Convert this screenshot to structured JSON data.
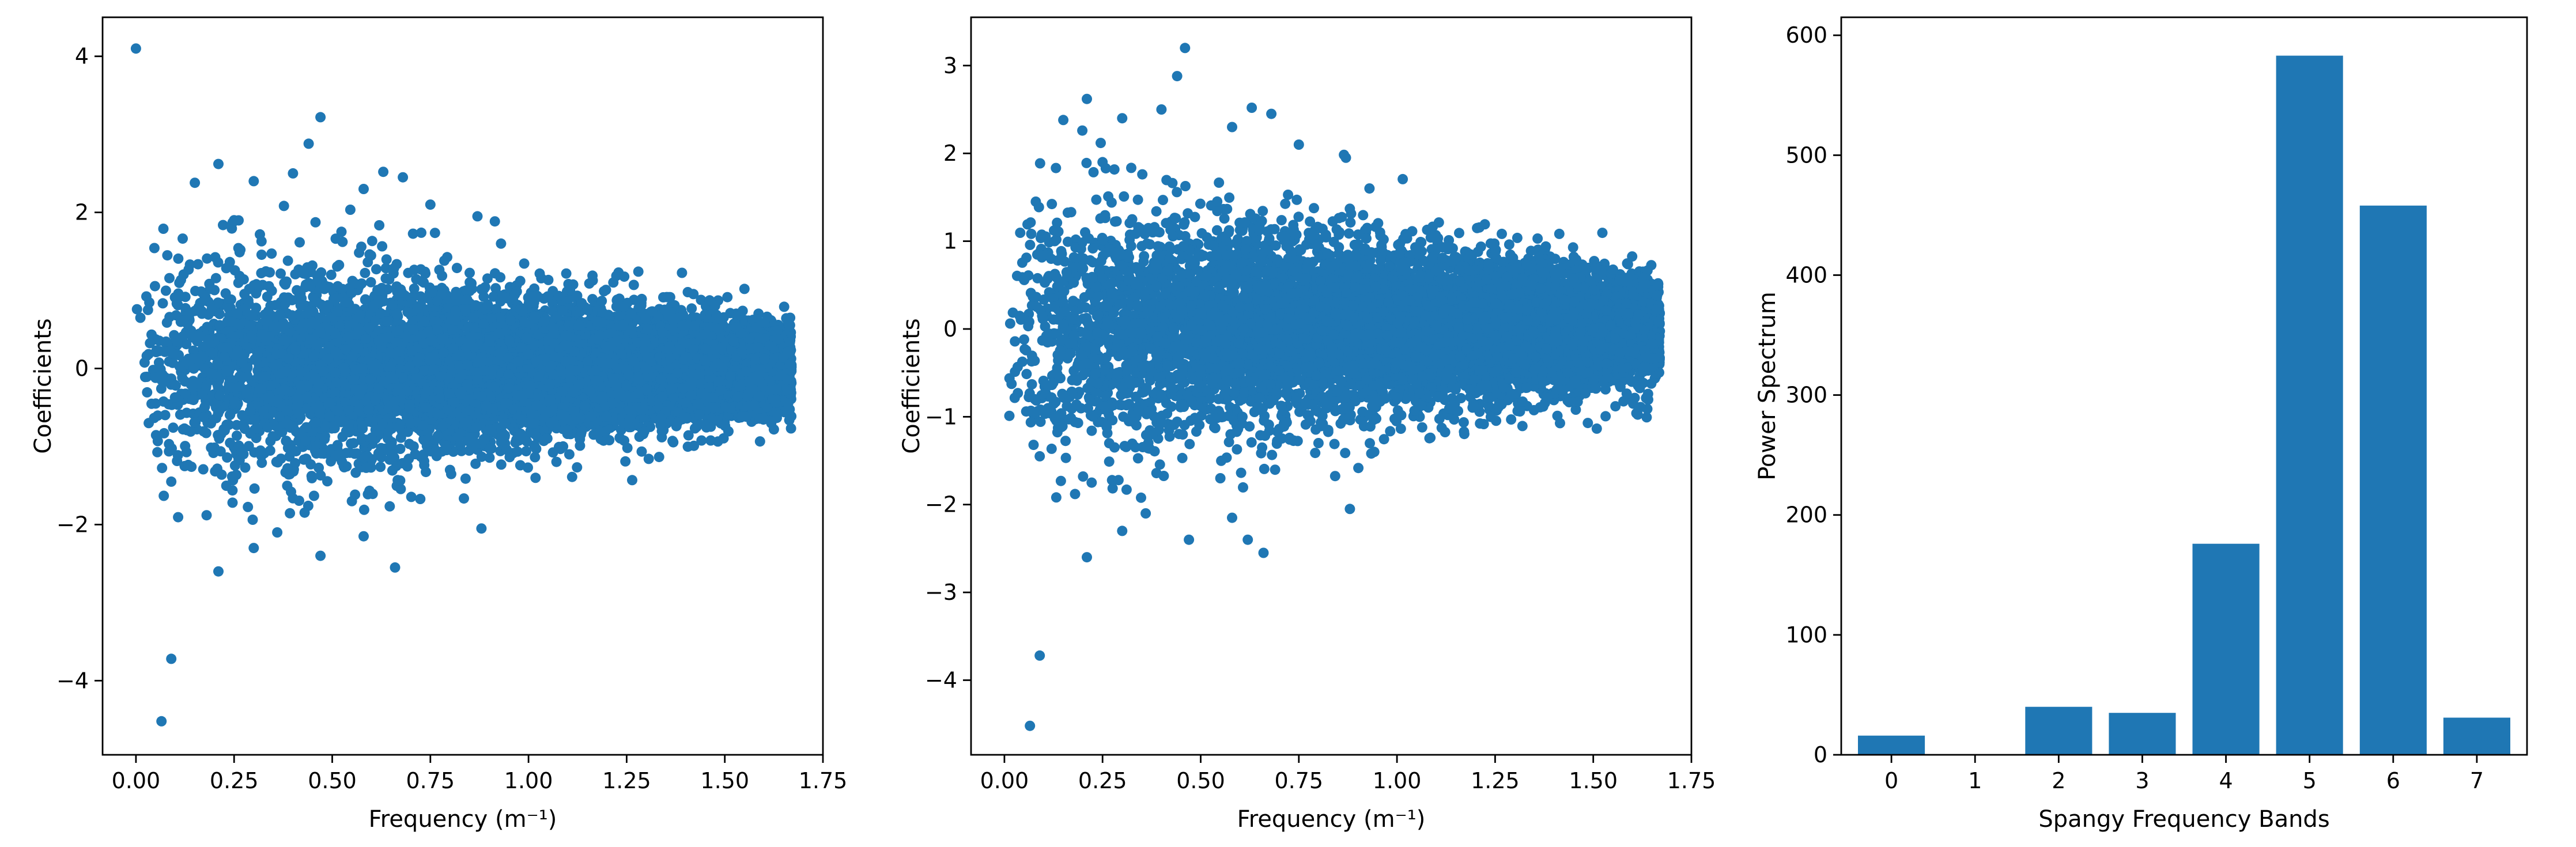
{
  "accent_color": "#1f77b4",
  "chart_data": [
    {
      "type": "scatter",
      "xlabel": "Frequency (m⁻¹)",
      "ylabel": "Coefficients",
      "xlim": [
        -0.085,
        1.75
      ],
      "ylim": [
        -4.95,
        4.5
      ],
      "xticks": [
        0.0,
        0.25,
        0.5,
        0.75,
        1.0,
        1.25,
        1.5,
        1.75
      ],
      "xtick_labels": [
        "0.00",
        "0.25",
        "0.50",
        "0.75",
        "1.00",
        "1.25",
        "1.50",
        "1.75"
      ],
      "yticks": [
        -4,
        -2,
        0,
        2,
        4
      ],
      "ytick_labels": [
        "−4",
        "−2",
        "0",
        "2",
        "4"
      ],
      "color": "#1f77b4",
      "grid": false,
      "points": [
        [
          0.0,
          4.1
        ],
        [
          0.065,
          -4.52
        ],
        [
          0.09,
          -3.72
        ],
        [
          0.21,
          -2.6
        ],
        [
          0.3,
          -2.3
        ],
        [
          0.21,
          2.62
        ],
        [
          0.47,
          3.22
        ],
        [
          0.44,
          2.88
        ],
        [
          0.63,
          2.52
        ],
        [
          0.68,
          2.45
        ],
        [
          0.47,
          -2.4
        ],
        [
          0.58,
          -2.15
        ],
        [
          0.66,
          -2.55
        ],
        [
          0.88,
          -2.05
        ],
        [
          0.36,
          -2.1
        ],
        [
          0.87,
          1.95
        ],
        [
          0.93,
          1.6
        ],
        [
          0.15,
          2.38
        ],
        [
          0.3,
          2.4
        ],
        [
          0.08,
          1.45
        ],
        [
          0.09,
          -1.45
        ],
        [
          0.12,
          -0.78
        ],
        [
          0.05,
          -0.12
        ],
        [
          0.18,
          -1.88
        ],
        [
          0.25,
          1.9
        ],
        [
          0.58,
          2.3
        ],
        [
          0.75,
          2.1
        ],
        [
          0.4,
          2.5
        ],
        [
          0.55,
          -1.7
        ],
        [
          0.8,
          -1.3
        ]
      ],
      "generated_cloud": {
        "count": 9000,
        "x_range": [
          0.0,
          1.67
        ],
        "spread_near_0": 0.75,
        "spread_at_max": 0.26,
        "max_abs": 2.6,
        "seed": 11
      }
    },
    {
      "type": "scatter",
      "xlabel": "Frequency (m⁻¹)",
      "ylabel": "Coefficients",
      "xlim": [
        -0.085,
        1.75
      ],
      "ylim": [
        -4.85,
        3.55
      ],
      "xticks": [
        0.0,
        0.25,
        0.5,
        0.75,
        1.0,
        1.25,
        1.5,
        1.75
      ],
      "xtick_labels": [
        "0.00",
        "0.25",
        "0.50",
        "0.75",
        "1.00",
        "1.25",
        "1.50",
        "1.75"
      ],
      "yticks": [
        -4,
        -3,
        -2,
        -1,
        0,
        1,
        2,
        3
      ],
      "ytick_labels": [
        "−4",
        "−3",
        "−2",
        "−1",
        "0",
        "1",
        "2",
        "3"
      ],
      "color": "#1f77b4",
      "grid": false,
      "points": [
        [
          0.065,
          -4.52
        ],
        [
          0.09,
          -3.72
        ],
        [
          0.46,
          3.2
        ],
        [
          0.44,
          2.88
        ],
        [
          0.21,
          2.62
        ],
        [
          0.63,
          2.52
        ],
        [
          0.68,
          2.45
        ],
        [
          0.15,
          2.38
        ],
        [
          0.3,
          2.4
        ],
        [
          0.47,
          -2.4
        ],
        [
          0.21,
          -2.6
        ],
        [
          0.3,
          -2.3
        ],
        [
          0.66,
          -2.55
        ],
        [
          0.88,
          -2.05
        ],
        [
          0.58,
          -2.15
        ],
        [
          0.36,
          -2.1
        ],
        [
          0.87,
          1.95
        ],
        [
          0.93,
          1.6
        ],
        [
          0.08,
          1.45
        ],
        [
          0.09,
          -1.45
        ],
        [
          0.05,
          -0.12
        ],
        [
          0.18,
          -1.88
        ],
        [
          0.25,
          1.9
        ],
        [
          0.58,
          2.3
        ],
        [
          0.75,
          2.1
        ],
        [
          0.4,
          2.5
        ],
        [
          0.55,
          -1.7
        ],
        [
          0.8,
          -1.3
        ],
        [
          0.12,
          -0.78
        ],
        [
          0.62,
          -2.4
        ]
      ],
      "generated_cloud": {
        "count": 9000,
        "x_range": [
          0.0,
          1.67
        ],
        "spread_near_0": 0.75,
        "spread_at_max": 0.26,
        "max_abs": 2.6,
        "seed": 23
      }
    },
    {
      "type": "bar",
      "xlabel": "Spangy Frequency Bands",
      "ylabel": "Power Spectrum",
      "categories": [
        "0",
        "1",
        "2",
        "3",
        "4",
        "5",
        "6",
        "7"
      ],
      "values": [
        16,
        0,
        40,
        35,
        176,
        583,
        458,
        31
      ],
      "xlim": [
        -0.6,
        7.6
      ],
      "ylim": [
        0,
        615
      ],
      "yticks": [
        0,
        100,
        200,
        300,
        400,
        500,
        600
      ],
      "ytick_labels": [
        "0",
        "100",
        "200",
        "300",
        "400",
        "500",
        "600"
      ],
      "color": "#1f77b4",
      "grid": false
    }
  ]
}
